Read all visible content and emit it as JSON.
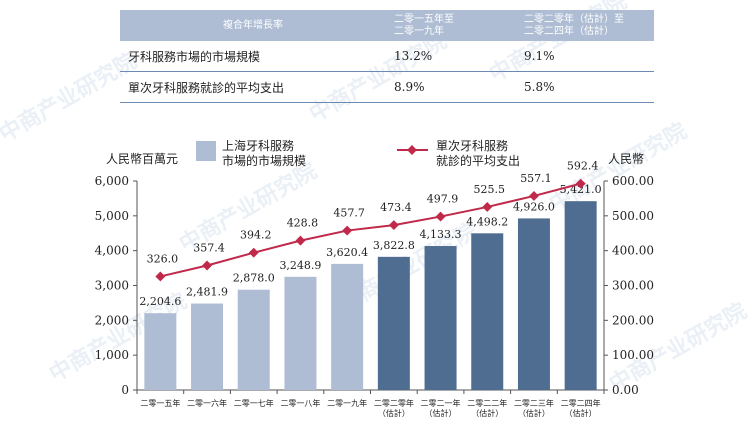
{
  "cagr_table": {
    "header": {
      "label": "複合年增長率",
      "col1": [
        "二零一五年至",
        "二零一九年"
      ],
      "col2": [
        "二零二零年（估計）至",
        "二零二四年（估計）"
      ]
    },
    "rows": [
      {
        "label": "牙科服務市場的市場規模",
        "v1": "13.2%",
        "v2": "9.1%"
      },
      {
        "label": "單次牙科服務就診的平均支出",
        "v1": "8.9%",
        "v2": "5.8%"
      }
    ]
  },
  "watermark": "中商产业研究院",
  "chart_data": {
    "type": "bar",
    "categories": [
      [
        "二零一五年"
      ],
      [
        "二零一六年"
      ],
      [
        "二零一七年"
      ],
      [
        "二零一八年"
      ],
      [
        "二零一九年"
      ],
      [
        "二零二零年",
        "（估計）"
      ],
      [
        "二零二一年",
        "（估計）"
      ],
      [
        "二零二二年",
        "（估計）"
      ],
      [
        "二零二三年",
        "（估計）"
      ],
      [
        "二零二四年",
        "（估計）"
      ]
    ],
    "series": [
      {
        "name": [
          "上海牙科服務",
          "市場的市場規模"
        ],
        "type": "bar",
        "axis": "left",
        "values": [
          2204.6,
          2481.9,
          2878.0,
          3248.9,
          3620.4,
          3822.8,
          4133.3,
          4498.2,
          4926.0,
          5421.0
        ],
        "labels": [
          "2,204.6",
          "2,481.9",
          "2,878.0",
          "3,248.9",
          "3,620.4",
          "3,822.8",
          "4,133.3",
          "4,498.2",
          "4,926.0",
          "5,421.0"
        ]
      },
      {
        "name": [
          "單次牙科服務",
          "就診的平均支出"
        ],
        "type": "line",
        "axis": "right",
        "values": [
          326.0,
          357.4,
          394.2,
          428.8,
          457.7,
          473.4,
          497.9,
          525.5,
          557.1,
          592.4
        ],
        "labels": [
          "326.0",
          "357.4",
          "394.2",
          "428.8",
          "457.7",
          "473.4",
          "497.9",
          "525.5",
          "557.1",
          "592.4"
        ]
      }
    ],
    "left_axis": {
      "title": "人民幣百萬元",
      "ylim": [
        0,
        6000
      ],
      "ticks": [
        0,
        1000,
        2000,
        3000,
        4000,
        5000,
        6000
      ],
      "tick_labels": [
        "0",
        "1,000",
        "2,000",
        "3,000",
        "4,000",
        "5,000",
        "6,000"
      ]
    },
    "right_axis": {
      "title": "人民幣",
      "ylim": [
        0,
        600
      ],
      "ticks": [
        0,
        100,
        200,
        300,
        400,
        500,
        600
      ],
      "tick_labels": [
        "0.00",
        "100.00",
        "200.00",
        "300.00",
        "400.00",
        "500.00",
        "600.00"
      ]
    },
    "colors": {
      "bar_historical": "#aebdd3",
      "bar_estimated": "#4f6d91",
      "line": "#c0294a"
    },
    "legend_position": "top",
    "grid": false
  }
}
